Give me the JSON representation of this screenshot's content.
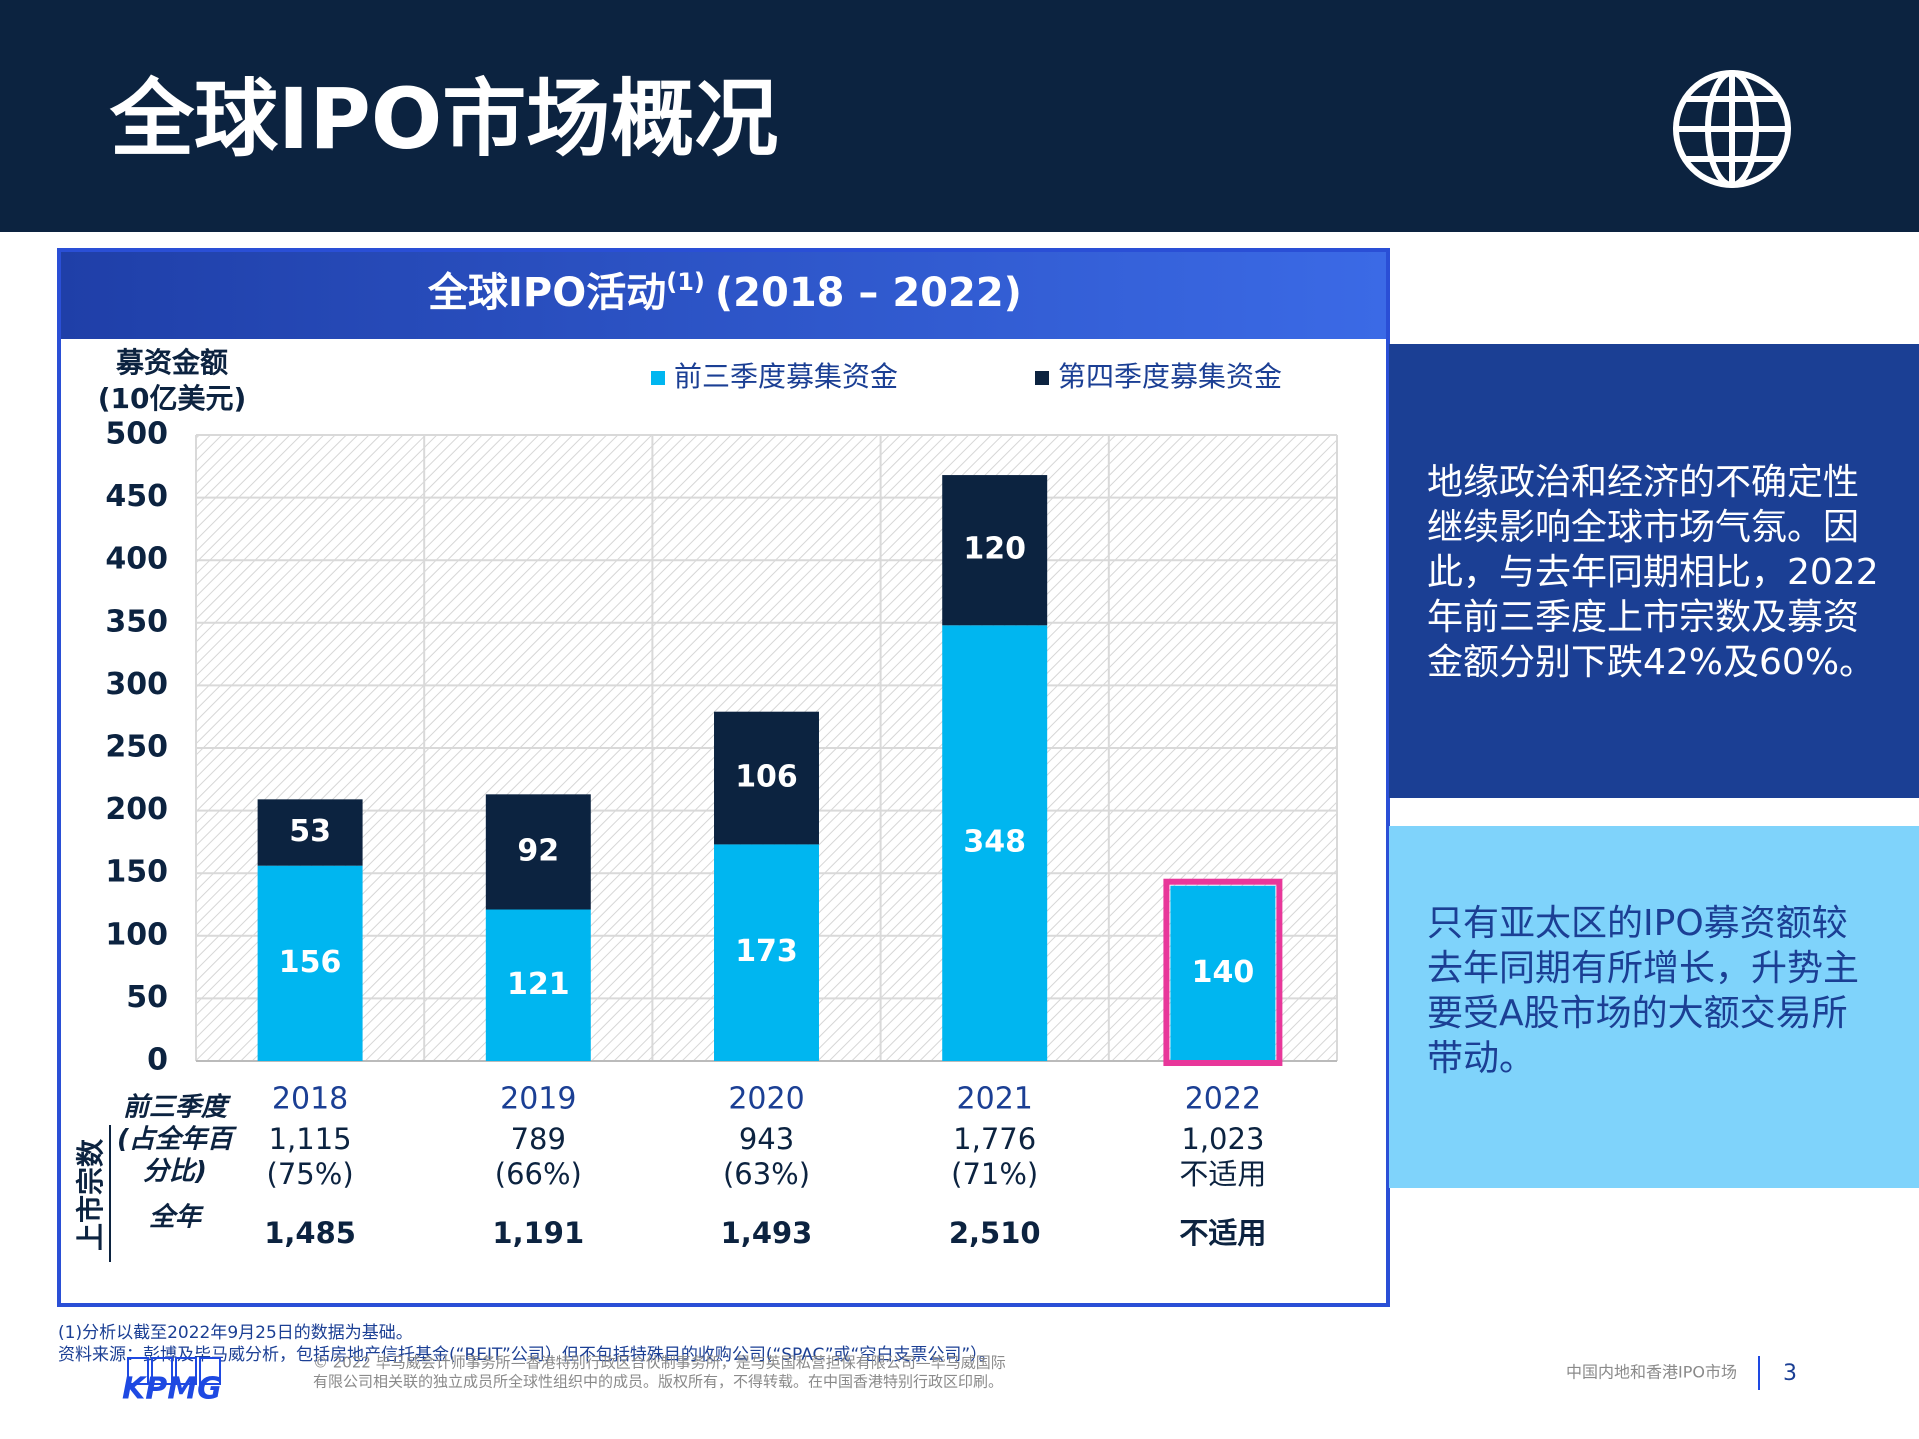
{
  "header": {
    "title": "全球IPO市场概况"
  },
  "chart_data": {
    "type": "bar",
    "stacked": true,
    "title": "全球IPO活动",
    "title_note": "(1)",
    "title_period": "(2018 – 2022)",
    "y_label": [
      "募资金额",
      "(10亿美元)"
    ],
    "categories": [
      "2018",
      "2019",
      "2020",
      "2021",
      "2022"
    ],
    "series": [
      {
        "name": "前三季度募集资金",
        "color": "#00b6f0",
        "values": [
          156,
          121,
          173,
          348,
          140
        ]
      },
      {
        "name": "第四季度募集资金",
        "color": "#0c2340",
        "values": [
          53,
          92,
          106,
          120,
          null
        ]
      }
    ],
    "highlight": [
      false,
      false,
      false,
      false,
      true
    ],
    "highlight_color": "#e8379a",
    "ylim": [
      0,
      500
    ],
    "yticks": [
      0,
      50,
      100,
      150,
      200,
      250,
      300,
      350,
      400,
      450,
      500
    ],
    "grid": true,
    "legend": "top-right"
  },
  "deal_table": {
    "title": "上市宗数",
    "rows": [
      {
        "label": [
          "前三季度",
          "(占全年百",
          "分比)"
        ],
        "values": [
          "1,115",
          "789",
          "943",
          "1,776",
          "1,023"
        ],
        "notes": [
          "(75%)",
          "(66%)",
          "(63%)",
          "(71%)",
          "不适用"
        ]
      },
      {
        "label": [
          "全年"
        ],
        "values": [
          "1,485",
          "1,191",
          "1,493",
          "2,510",
          "不适用"
        ]
      }
    ]
  },
  "panels": [
    [
      "地缘政治和经济的不确定性",
      "继续影响全球市场气氛。因",
      "此，与去年同期相比，2022",
      "年前三季度上市宗数及募资",
      "金额分别下跌42%及60%。"
    ],
    [
      "只有亚太区的IPO募资额较",
      "去年同期有所增长，升势主",
      "要受A股市场的大额交易所",
      "带动。"
    ]
  ],
  "footnotes": [
    "(1)分析以截至2022年9月25日的数据为基础。",
    "资料来源：彭博及毕马威分析，包括房地产信托基金(“REIT”公司）但不包括特殊目的收购公司(“SPAC”或“空白支票公司”）。"
  ],
  "footer": {
    "logo": "KPMG",
    "copyright": [
      "© 2022 毕马威会计师事务所—香港特别行政区合伙制事务所，是与英国私营担保有限公司—毕马威国际",
      "有限公司相关联的独立成员所全球性组织中的成员。版权所有，不得转载。在中国香港特别行政区印刷。"
    ],
    "section": "中国内地和香港IPO市场",
    "page": "3"
  }
}
